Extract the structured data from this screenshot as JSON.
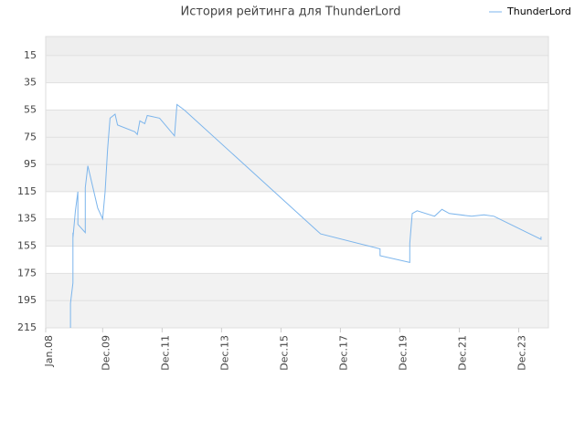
{
  "chart_data": {
    "type": "line",
    "title": "История рейтинга для ThunderLord",
    "x": [
      "2008-11",
      "2008-11",
      "2008-12",
      "2008-12",
      "2008-12",
      "2009-01",
      "2009-02",
      "2009-02",
      "2009-05",
      "2009-05",
      "2009-06",
      "2009-10",
      "2009-12",
      "2010-01",
      "2010-02",
      "2010-03",
      "2010-05",
      "2010-06",
      "2011-01",
      "2011-02",
      "2011-03",
      "2011-05",
      "2011-06",
      "2011-11",
      "2012-05",
      "2012-06",
      "2012-09",
      "2017-04",
      "2019-04",
      "2019-04",
      "2020-04",
      "2020-04",
      "2020-05",
      "2020-07",
      "2021-02",
      "2021-05",
      "2021-08",
      "2022-05",
      "2022-10",
      "2023-02",
      "2024-09",
      "2024-09"
    ],
    "series": [
      {
        "name": "ThunderLord",
        "color": "#7cb5ec",
        "values": [
          215,
          197,
          182,
          145,
          149,
          129,
          115,
          139,
          145,
          112,
          96,
          127,
          135,
          115,
          84,
          61,
          58,
          66,
          71,
          73,
          63,
          65,
          59,
          61,
          74,
          51,
          55,
          146,
          157,
          162,
          167,
          153,
          131,
          129,
          133,
          128,
          131,
          133,
          132,
          133,
          150,
          148
        ]
      }
    ],
    "xlim": [
      "2008-01",
      "2024-12"
    ],
    "xticks": [
      {
        "value": "2008-01",
        "label": "Jan.08"
      },
      {
        "value": "2009-12",
        "label": "Dec.09"
      },
      {
        "value": "2011-12",
        "label": "Dec.11"
      },
      {
        "value": "2013-12",
        "label": "Dec.13"
      },
      {
        "value": "2015-12",
        "label": "Dec.15"
      },
      {
        "value": "2017-12",
        "label": "Dec.17"
      },
      {
        "value": "2019-12",
        "label": "Dec.19"
      },
      {
        "value": "2021-12",
        "label": "Dec.21"
      },
      {
        "value": "2023-12",
        "label": "Dec.23"
      }
    ],
    "ylim": [
      215,
      1
    ],
    "yticks": [
      15,
      35,
      55,
      75,
      95,
      115,
      135,
      155,
      175,
      195,
      215
    ],
    "grid": true,
    "legend": "top-right"
  }
}
